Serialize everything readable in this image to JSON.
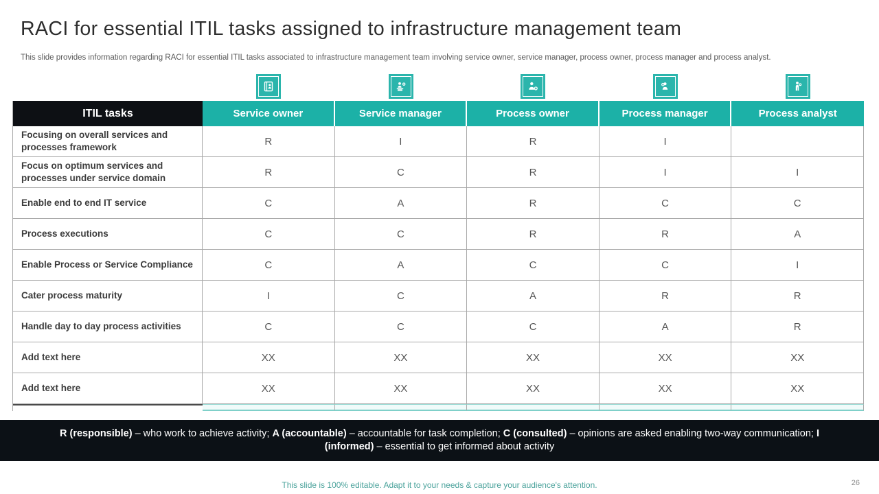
{
  "slide": {
    "title": "RACI for essential ITIL tasks assigned to infrastructure management team",
    "subtitle": "This slide provides information regarding RACI for  essential ITIL tasks associated to infrastructure management team involving service owner, service manager, process owner, process manager and process analyst.",
    "footer_note": "This slide is 100% editable. Adapt it to your needs & capture your audience's attention.",
    "page_number": "26"
  },
  "colors": {
    "teal_header": "#1cb1a7",
    "icon_teal": "#2bb5ac",
    "black_cell": "#0d1014",
    "legend_bar": "#0c1116",
    "grid_border": "#a8a8a8",
    "strip_teal": "#7fd0c9",
    "footer_note_teal": "#4aa29b"
  },
  "icons": [
    {
      "name": "service-owner-icon"
    },
    {
      "name": "service-manager-icon"
    },
    {
      "name": "process-owner-icon"
    },
    {
      "name": "process-manager-icon"
    },
    {
      "name": "process-analyst-icon"
    }
  ],
  "table": {
    "headers": [
      "ITIL tasks",
      "Service owner",
      "Service manager",
      "Process owner",
      "Process manager",
      "Process analyst"
    ],
    "rows": [
      {
        "task": "Focusing on overall services and processes framework",
        "values": [
          "R",
          "I",
          "R",
          "I",
          ""
        ]
      },
      {
        "task": "Focus on optimum services and processes under service domain",
        "values": [
          "R",
          "C",
          "R",
          "I",
          "I"
        ]
      },
      {
        "task": "Enable end to end IT service",
        "values": [
          "C",
          "A",
          "R",
          "C",
          "C"
        ]
      },
      {
        "task": "Process executions",
        "values": [
          "C",
          "C",
          "R",
          "R",
          "A"
        ]
      },
      {
        "task": "Enable Process or  Service Compliance",
        "values": [
          "C",
          "A",
          "C",
          "C",
          "I"
        ]
      },
      {
        "task": "Cater process maturity",
        "values": [
          "I",
          "C",
          "A",
          "R",
          "R"
        ]
      },
      {
        "task": "Handle day to day process activities",
        "values": [
          "C",
          "C",
          "C",
          "A",
          "R"
        ]
      },
      {
        "task": "Add text here",
        "values": [
          "XX",
          "XX",
          "XX",
          "XX",
          "XX"
        ]
      },
      {
        "task": "Add text here",
        "values": [
          "XX",
          "XX",
          "XX",
          "XX",
          "XX"
        ]
      }
    ]
  },
  "legend": {
    "segments": [
      {
        "text": "R (responsible)",
        "bold": true
      },
      {
        "text": " – who work to achieve activity;  ",
        "bold": false
      },
      {
        "text": "A (accountable)",
        "bold": true
      },
      {
        "text": " – accountable  for task completion;  ",
        "bold": false
      },
      {
        "text": "C (consulted)",
        "bold": true
      },
      {
        "text": " – opinions are asked enabling two-way communication;  ",
        "bold": false
      },
      {
        "text": "I (informed)",
        "bold": true
      },
      {
        "text": " – essential to get informed about activity",
        "bold": false
      }
    ]
  }
}
